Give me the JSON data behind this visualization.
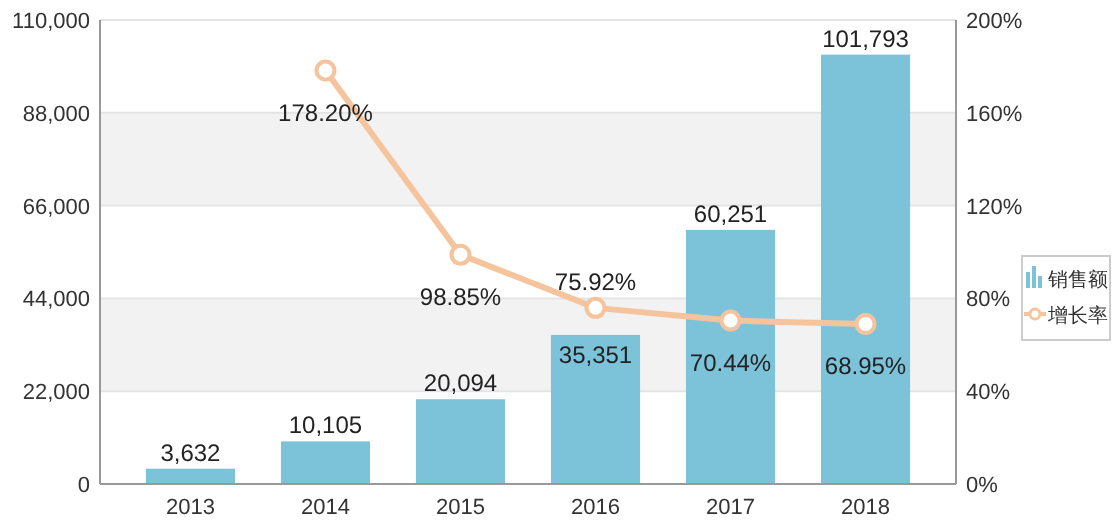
{
  "chart_data": {
    "type": "bar",
    "categories": [
      "2013",
      "2014",
      "2015",
      "2016",
      "2017",
      "2018"
    ],
    "series": [
      {
        "name": "销售额",
        "color": "#7cc3da",
        "values": [
          3632,
          10105,
          20094,
          35351,
          60251,
          101793
        ],
        "value_labels": [
          "3,632",
          "10,105",
          "20,094",
          "35,351",
          "60,251",
          "101,793"
        ]
      },
      {
        "name": "增长率",
        "type": "line",
        "axis": "y2",
        "color": "#f6c49c",
        "values": [
          null,
          178.2,
          98.85,
          75.92,
          70.44,
          68.95
        ],
        "value_labels": [
          null,
          "178.20%",
          "98.85%",
          "75.92%",
          "70.44%",
          "68.95%"
        ]
      }
    ],
    "ylim": [
      0,
      110000
    ],
    "yticks": [
      {
        "value": 0,
        "label": "0"
      },
      {
        "value": 22000,
        "label": "22,000"
      },
      {
        "value": 44000,
        "label": "44,000"
      },
      {
        "value": 66000,
        "label": "66,000"
      },
      {
        "value": 88000,
        "label": "88,000"
      },
      {
        "value": 110000,
        "label": "110,000"
      }
    ],
    "y2lim": [
      0,
      200
    ],
    "y2ticks": [
      {
        "value": 0,
        "label": "0%"
      },
      {
        "value": 40,
        "label": "40%"
      },
      {
        "value": 80,
        "label": "80%"
      },
      {
        "value": 120,
        "label": "120%"
      },
      {
        "value": 160,
        "label": "160%"
      },
      {
        "value": 200,
        "label": "200%"
      }
    ],
    "grid": "y",
    "legend": "right",
    "marker": "circle",
    "line_style": "solid"
  }
}
